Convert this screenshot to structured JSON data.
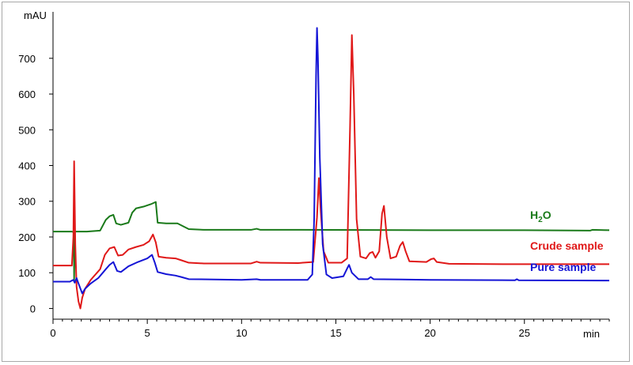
{
  "chart_data": {
    "type": "line",
    "title": "",
    "xlabel": "min",
    "ylabel": "mAU",
    "xlim": [
      0,
      29.5
    ],
    "ylim": [
      -30,
      830
    ],
    "xticks": [
      0,
      5,
      10,
      15,
      20,
      25
    ],
    "xticks_minor_step": 0.5,
    "yticks": [
      0,
      100,
      200,
      300,
      400,
      500,
      600,
      700
    ],
    "grid": false,
    "series": [
      {
        "name": "H2O",
        "label_main": "H",
        "label_sub": "2",
        "label_tail": "O",
        "color": "#1a7a1a",
        "points": [
          [
            0,
            215
          ],
          [
            1.0,
            215
          ],
          [
            1.1,
            214
          ],
          [
            1.12,
            80
          ],
          [
            1.15,
            214
          ],
          [
            1.2,
            215
          ],
          [
            1.8,
            215
          ],
          [
            2.0,
            216
          ],
          [
            2.5,
            218
          ],
          [
            2.8,
            248
          ],
          [
            3.0,
            258
          ],
          [
            3.2,
            262
          ],
          [
            3.35,
            238
          ],
          [
            3.6,
            234
          ],
          [
            4.0,
            240
          ],
          [
            4.2,
            268
          ],
          [
            4.4,
            280
          ],
          [
            4.8,
            285
          ],
          [
            5.2,
            292
          ],
          [
            5.45,
            298
          ],
          [
            5.55,
            240
          ],
          [
            6.0,
            238
          ],
          [
            6.6,
            238
          ],
          [
            6.9,
            230
          ],
          [
            7.2,
            222
          ],
          [
            8.0,
            220
          ],
          [
            10.0,
            220
          ],
          [
            10.5,
            220
          ],
          [
            10.8,
            223
          ],
          [
            11.0,
            220
          ],
          [
            13.0,
            220
          ],
          [
            20.0,
            219
          ],
          [
            25.0,
            219
          ],
          [
            28.5,
            218
          ],
          [
            28.6,
            220
          ],
          [
            29.5,
            219
          ]
        ]
      },
      {
        "name": "Crude sample",
        "color": "#e01818",
        "points": [
          [
            0,
            120
          ],
          [
            1.0,
            120
          ],
          [
            1.08,
            200
          ],
          [
            1.12,
            412
          ],
          [
            1.18,
            180
          ],
          [
            1.25,
            60
          ],
          [
            1.35,
            20
          ],
          [
            1.45,
            0
          ],
          [
            1.55,
            30
          ],
          [
            1.7,
            55
          ],
          [
            2.0,
            80
          ],
          [
            2.5,
            110
          ],
          [
            2.75,
            150
          ],
          [
            3.0,
            168
          ],
          [
            3.25,
            172
          ],
          [
            3.45,
            148
          ],
          [
            3.7,
            150
          ],
          [
            4.0,
            165
          ],
          [
            4.4,
            172
          ],
          [
            4.8,
            178
          ],
          [
            5.1,
            188
          ],
          [
            5.3,
            207
          ],
          [
            5.45,
            185
          ],
          [
            5.6,
            145
          ],
          [
            6.0,
            142
          ],
          [
            6.5,
            140
          ],
          [
            6.8,
            135
          ],
          [
            7.2,
            128
          ],
          [
            8.0,
            126
          ],
          [
            10.5,
            126
          ],
          [
            10.8,
            131
          ],
          [
            11.0,
            128
          ],
          [
            13.0,
            127
          ],
          [
            13.8,
            130
          ],
          [
            14.0,
            255
          ],
          [
            14.1,
            365
          ],
          [
            14.2,
            270
          ],
          [
            14.35,
            160
          ],
          [
            14.6,
            128
          ],
          [
            15.3,
            128
          ],
          [
            15.6,
            140
          ],
          [
            15.75,
            500
          ],
          [
            15.85,
            765
          ],
          [
            15.95,
            600
          ],
          [
            16.1,
            250
          ],
          [
            16.3,
            145
          ],
          [
            16.6,
            140
          ],
          [
            16.8,
            155
          ],
          [
            16.95,
            158
          ],
          [
            17.1,
            142
          ],
          [
            17.3,
            160
          ],
          [
            17.45,
            265
          ],
          [
            17.55,
            287
          ],
          [
            17.7,
            200
          ],
          [
            17.9,
            140
          ],
          [
            18.2,
            145
          ],
          [
            18.4,
            175
          ],
          [
            18.55,
            186
          ],
          [
            18.7,
            160
          ],
          [
            18.9,
            132
          ],
          [
            19.8,
            130
          ],
          [
            20.05,
            138
          ],
          [
            20.2,
            140
          ],
          [
            20.35,
            130
          ],
          [
            21.0,
            125
          ],
          [
            24.0,
            124
          ],
          [
            29.5,
            124
          ]
        ]
      },
      {
        "name": "Pure sample",
        "color": "#1515d6",
        "points": [
          [
            0,
            75
          ],
          [
            0.9,
            75
          ],
          [
            1.0,
            78
          ],
          [
            1.08,
            80
          ],
          [
            1.15,
            72
          ],
          [
            1.25,
            85
          ],
          [
            1.35,
            70
          ],
          [
            1.55,
            42
          ],
          [
            1.7,
            55
          ],
          [
            2.0,
            70
          ],
          [
            2.4,
            85
          ],
          [
            2.8,
            110
          ],
          [
            3.0,
            122
          ],
          [
            3.2,
            130
          ],
          [
            3.4,
            105
          ],
          [
            3.6,
            102
          ],
          [
            4.0,
            118
          ],
          [
            4.5,
            130
          ],
          [
            5.0,
            140
          ],
          [
            5.25,
            150
          ],
          [
            5.4,
            128
          ],
          [
            5.55,
            102
          ],
          [
            6.0,
            96
          ],
          [
            6.5,
            92
          ],
          [
            6.8,
            88
          ],
          [
            7.2,
            82
          ],
          [
            10.0,
            80
          ],
          [
            10.8,
            82
          ],
          [
            11.0,
            80
          ],
          [
            13.5,
            80
          ],
          [
            13.75,
            95
          ],
          [
            13.85,
            250
          ],
          [
            13.95,
            650
          ],
          [
            14.0,
            785
          ],
          [
            14.05,
            700
          ],
          [
            14.15,
            420
          ],
          [
            14.3,
            180
          ],
          [
            14.5,
            95
          ],
          [
            14.8,
            85
          ],
          [
            15.4,
            90
          ],
          [
            15.6,
            112
          ],
          [
            15.7,
            122
          ],
          [
            15.85,
            100
          ],
          [
            16.2,
            82
          ],
          [
            16.7,
            82
          ],
          [
            16.85,
            88
          ],
          [
            17.0,
            82
          ],
          [
            20.0,
            80
          ],
          [
            24.5,
            79
          ],
          [
            24.6,
            82
          ],
          [
            24.7,
            79
          ],
          [
            29.5,
            78
          ]
        ]
      }
    ]
  }
}
